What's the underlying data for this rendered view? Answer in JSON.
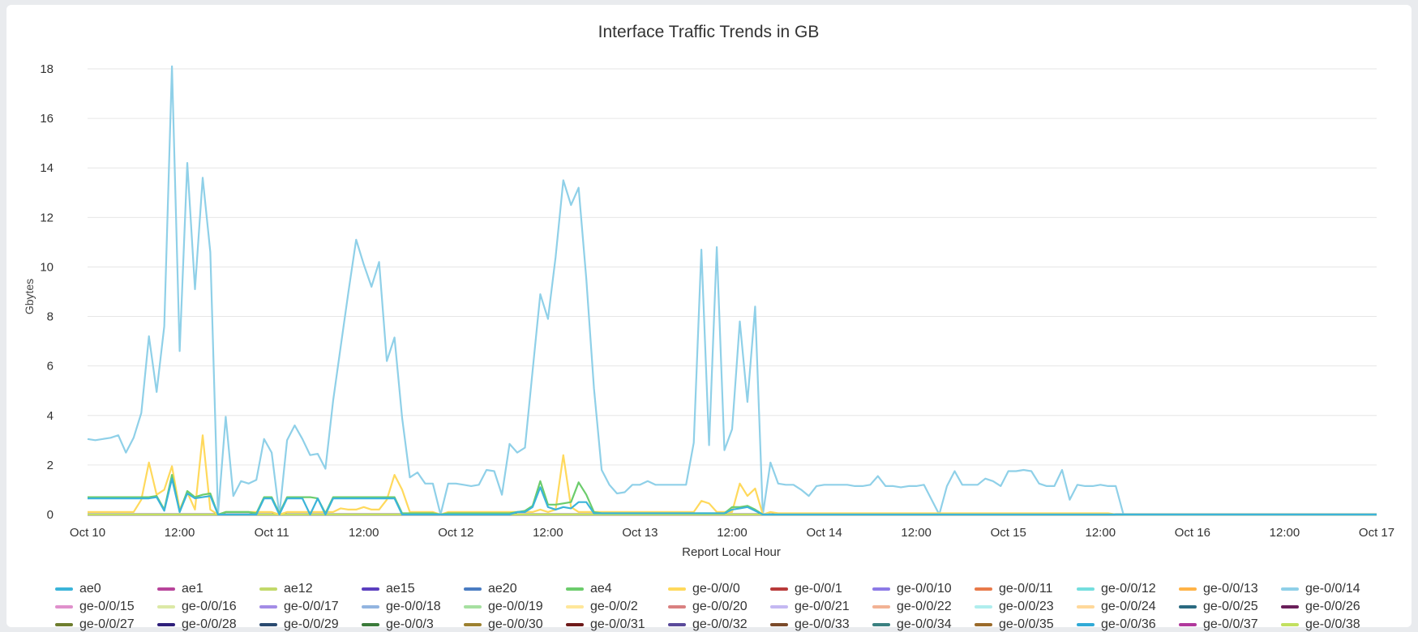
{
  "chart_data": {
    "type": "line",
    "title": "Interface Traffic Trends in GB",
    "xlabel": "Report Local Hour",
    "ylabel": "Gbytes",
    "ylim": [
      0,
      18
    ],
    "yticks": [
      0,
      2,
      4,
      6,
      8,
      10,
      12,
      14,
      16,
      18
    ],
    "xlim_hours": [
      0,
      168
    ],
    "xticks": [
      {
        "hour": 0,
        "label": "Oct 10"
      },
      {
        "hour": 12,
        "label": "12:00"
      },
      {
        "hour": 24,
        "label": "Oct 11"
      },
      {
        "hour": 36,
        "label": "12:00"
      },
      {
        "hour": 48,
        "label": "Oct 12"
      },
      {
        "hour": 60,
        "label": "12:00"
      },
      {
        "hour": 72,
        "label": "Oct 13"
      },
      {
        "hour": 84,
        "label": "12:00"
      },
      {
        "hour": 96,
        "label": "Oct 14"
      },
      {
        "hour": 108,
        "label": "12:00"
      },
      {
        "hour": 120,
        "label": "Oct 15"
      },
      {
        "hour": 132,
        "label": "12:00"
      },
      {
        "hour": 144,
        "label": "Oct 16"
      },
      {
        "hour": 156,
        "label": "12:00"
      },
      {
        "hour": 168,
        "label": "Oct 17"
      }
    ],
    "grid": true,
    "legend_position": "bottom",
    "default_value": 0,
    "series": [
      {
        "name": "ae0",
        "color": "#3bb4d9",
        "values": [
          0.65,
          0.65,
          0.65,
          0.65,
          0.65,
          0.65,
          0.65,
          0.65,
          0.65,
          0.7,
          0.15,
          1.45,
          0.1,
          0.85,
          0.65,
          0.7,
          0.75,
          0,
          0,
          0,
          0,
          0,
          0,
          0.65,
          0.65,
          0,
          0.65,
          0.65,
          0.65,
          0,
          0.65,
          0,
          0.65,
          0.65,
          0.65,
          0.65,
          0.65,
          0.65,
          0.65,
          0.65,
          0.65,
          0,
          0,
          0,
          0,
          0,
          0,
          0,
          0,
          0,
          0,
          0,
          0,
          0,
          0,
          0,
          0.1,
          0.1,
          0.3,
          1.1,
          0.3,
          0.2,
          0.3,
          0.25,
          0.5,
          0.5,
          0.05,
          0.05,
          0.05,
          0.05,
          0.05,
          0.05,
          0.05,
          0.05,
          0.05,
          0.05,
          0.05,
          0.05,
          0.05,
          0.05,
          0.05,
          0.05,
          0.05,
          0.05,
          0.2,
          0.25,
          0.3,
          0.15,
          0
        ]
      },
      {
        "name": "ae1",
        "color": "#b8449a"
      },
      {
        "name": "ae12",
        "color": "#c2d96a"
      },
      {
        "name": "ae15",
        "color": "#5b3fbf"
      },
      {
        "name": "ae20",
        "color": "#4a7cc2"
      },
      {
        "name": "ae4",
        "color": "#6ccc6c",
        "values": [
          0.7,
          0.7,
          0.7,
          0.7,
          0.7,
          0.7,
          0.7,
          0.7,
          0.7,
          0.75,
          0.2,
          1.6,
          0.1,
          0.95,
          0.7,
          0.8,
          0.85,
          0,
          0.1,
          0.1,
          0.1,
          0.1,
          0.05,
          0.7,
          0.7,
          0.05,
          0.7,
          0.7,
          0.7,
          0.7,
          0.65,
          0.05,
          0.7,
          0.7,
          0.7,
          0.7,
          0.7,
          0.7,
          0.7,
          0.7,
          0.7,
          0.05,
          0.05,
          0.05,
          0.05,
          0.05,
          0,
          0.05,
          0.05,
          0.05,
          0.05,
          0.05,
          0.05,
          0.05,
          0.05,
          0.05,
          0.1,
          0.15,
          0.35,
          1.35,
          0.4,
          0.4,
          0.45,
          0.5,
          1.3,
          0.8,
          0.1,
          0.05,
          0.05,
          0.05,
          0.05,
          0.05,
          0.05,
          0.05,
          0.05,
          0.05,
          0.05,
          0.05,
          0.05,
          0.05,
          0.05,
          0.05,
          0.05,
          0.05,
          0.3,
          0.3,
          0.35,
          0.2,
          0
        ]
      },
      {
        "name": "ge-0/0/0",
        "color": "#ffd95c",
        "values": [
          0.1,
          0.1,
          0.1,
          0.1,
          0.1,
          0.1,
          0.1,
          0.6,
          2.1,
          0.8,
          1.0,
          1.95,
          0.2,
          0.9,
          0.2,
          3.2,
          0.2,
          0,
          0.1,
          0.1,
          0.1,
          0.1,
          0.1,
          0.1,
          0.1,
          0,
          0.1,
          0.1,
          0.1,
          0.1,
          0.1,
          0.1,
          0.1,
          0.25,
          0.2,
          0.2,
          0.3,
          0.2,
          0.2,
          0.6,
          1.6,
          1.0,
          0.1,
          0.1,
          0.1,
          0.1,
          0,
          0.1,
          0.1,
          0.1,
          0.1,
          0.1,
          0.1,
          0.1,
          0.1,
          0.1,
          0.1,
          0.1,
          0.1,
          0.2,
          0.1,
          0.2,
          2.4,
          0.3,
          0.1,
          0.1,
          0.1,
          0.1,
          0.1,
          0.1,
          0.1,
          0.1,
          0.1,
          0.1,
          0.1,
          0.1,
          0.1,
          0.1,
          0.1,
          0.1,
          0.55,
          0.45,
          0.1,
          0.1,
          0.1,
          1.25,
          0.75,
          1.05,
          0,
          0.1,
          0.05,
          0.05,
          0.05,
          0.05,
          0.05,
          0.05,
          0.05,
          0.05,
          0.05,
          0.05,
          0.05,
          0.05,
          0.05,
          0.05,
          0.05,
          0.05,
          0.05,
          0.05,
          0.05,
          0.05,
          0.05,
          0.05,
          0.05,
          0.05,
          0.05,
          0.05,
          0.05,
          0.05,
          0.05,
          0.05,
          0.05,
          0.05,
          0.05,
          0.05,
          0.05,
          0.05,
          0.05,
          0.05,
          0.05,
          0.05,
          0.05,
          0.05,
          0.05,
          0.05,
          0
        ]
      },
      {
        "name": "ge-0/0/1",
        "color": "#b83a3a"
      },
      {
        "name": "ge-0/0/10",
        "color": "#8c7ae6"
      },
      {
        "name": "ge-0/0/11",
        "color": "#e87a4a"
      },
      {
        "name": "ge-0/0/12",
        "color": "#74dede"
      },
      {
        "name": "ge-0/0/13",
        "color": "#ffb347"
      },
      {
        "name": "ge-0/0/14",
        "color": "#8fd0e8",
        "values": [
          3.05,
          3.0,
          3.05,
          3.1,
          3.2,
          2.5,
          3.1,
          4.1,
          7.2,
          4.95,
          7.6,
          18.1,
          6.6,
          14.2,
          9.1,
          13.6,
          10.6,
          0,
          3.95,
          0.75,
          1.35,
          1.25,
          1.4,
          3.05,
          2.5,
          0,
          3.0,
          3.6,
          3.05,
          2.4,
          2.45,
          1.85,
          4.6,
          6.8,
          9.0,
          11.1,
          10.1,
          9.2,
          10.2,
          6.2,
          7.15,
          3.9,
          1.5,
          1.7,
          1.25,
          1.25,
          0,
          1.25,
          1.25,
          1.2,
          1.15,
          1.2,
          1.8,
          1.75,
          0.8,
          2.85,
          2.5,
          2.7,
          5.8,
          8.9,
          7.9,
          10.4,
          13.5,
          12.5,
          13.2,
          9.5,
          5.1,
          1.8,
          1.2,
          0.85,
          0.9,
          1.2,
          1.2,
          1.35,
          1.2,
          1.2,
          1.2,
          1.2,
          1.2,
          2.9,
          10.7,
          2.8,
          10.8,
          2.6,
          3.45,
          7.8,
          4.55,
          8.4,
          0,
          2.1,
          1.25,
          1.2,
          1.2,
          1.0,
          0.75,
          1.15,
          1.2,
          1.2,
          1.2,
          1.2,
          1.15,
          1.15,
          1.2,
          1.55,
          1.15,
          1.15,
          1.1,
          1.15,
          1.15,
          1.2,
          0.6,
          0,
          1.15,
          1.75,
          1.2,
          1.2,
          1.2,
          1.45,
          1.35,
          1.15,
          1.75,
          1.75,
          1.8,
          1.75,
          1.25,
          1.15,
          1.15,
          1.8,
          0.6,
          1.2,
          1.15,
          1.15,
          1.2,
          1.15,
          1.15,
          0
        ]
      },
      {
        "name": "ge-0/0/15",
        "color": "#e090cc"
      },
      {
        "name": "ge-0/0/16",
        "color": "#dce9a6"
      },
      {
        "name": "ge-0/0/17",
        "color": "#a38ce6"
      },
      {
        "name": "ge-0/0/18",
        "color": "#92b4e0"
      },
      {
        "name": "ge-0/0/19",
        "color": "#a6e0a0"
      },
      {
        "name": "ge-0/0/2",
        "color": "#ffe79a"
      },
      {
        "name": "ge-0/0/20",
        "color": "#d98080"
      },
      {
        "name": "ge-0/0/21",
        "color": "#c4b8f2"
      },
      {
        "name": "ge-0/0/22",
        "color": "#f2b294"
      },
      {
        "name": "ge-0/0/23",
        "color": "#b0eeee"
      },
      {
        "name": "ge-0/0/24",
        "color": "#ffd89a"
      },
      {
        "name": "ge-0/0/25",
        "color": "#2a6a80"
      },
      {
        "name": "ge-0/0/26",
        "color": "#6a1f5a"
      },
      {
        "name": "ge-0/0/27",
        "color": "#6e7d2e"
      },
      {
        "name": "ge-0/0/28",
        "color": "#2e1f7a"
      },
      {
        "name": "ge-0/0/29",
        "color": "#2a4a70"
      },
      {
        "name": "ge-0/0/3",
        "color": "#3a7a3a"
      },
      {
        "name": "ge-0/0/30",
        "color": "#9c8030"
      },
      {
        "name": "ge-0/0/31",
        "color": "#6e1a1a"
      },
      {
        "name": "ge-0/0/32",
        "color": "#5a4a9a"
      },
      {
        "name": "ge-0/0/33",
        "color": "#7a4a2a"
      },
      {
        "name": "ge-0/0/34",
        "color": "#3a8080"
      },
      {
        "name": "ge-0/0/35",
        "color": "#9a6a2a"
      },
      {
        "name": "ge-0/0/36",
        "color": "#30aad6"
      },
      {
        "name": "ge-0/0/37",
        "color": "#b0389c"
      },
      {
        "name": "ge-0/0/38",
        "color": "#c2e060"
      }
    ]
  }
}
